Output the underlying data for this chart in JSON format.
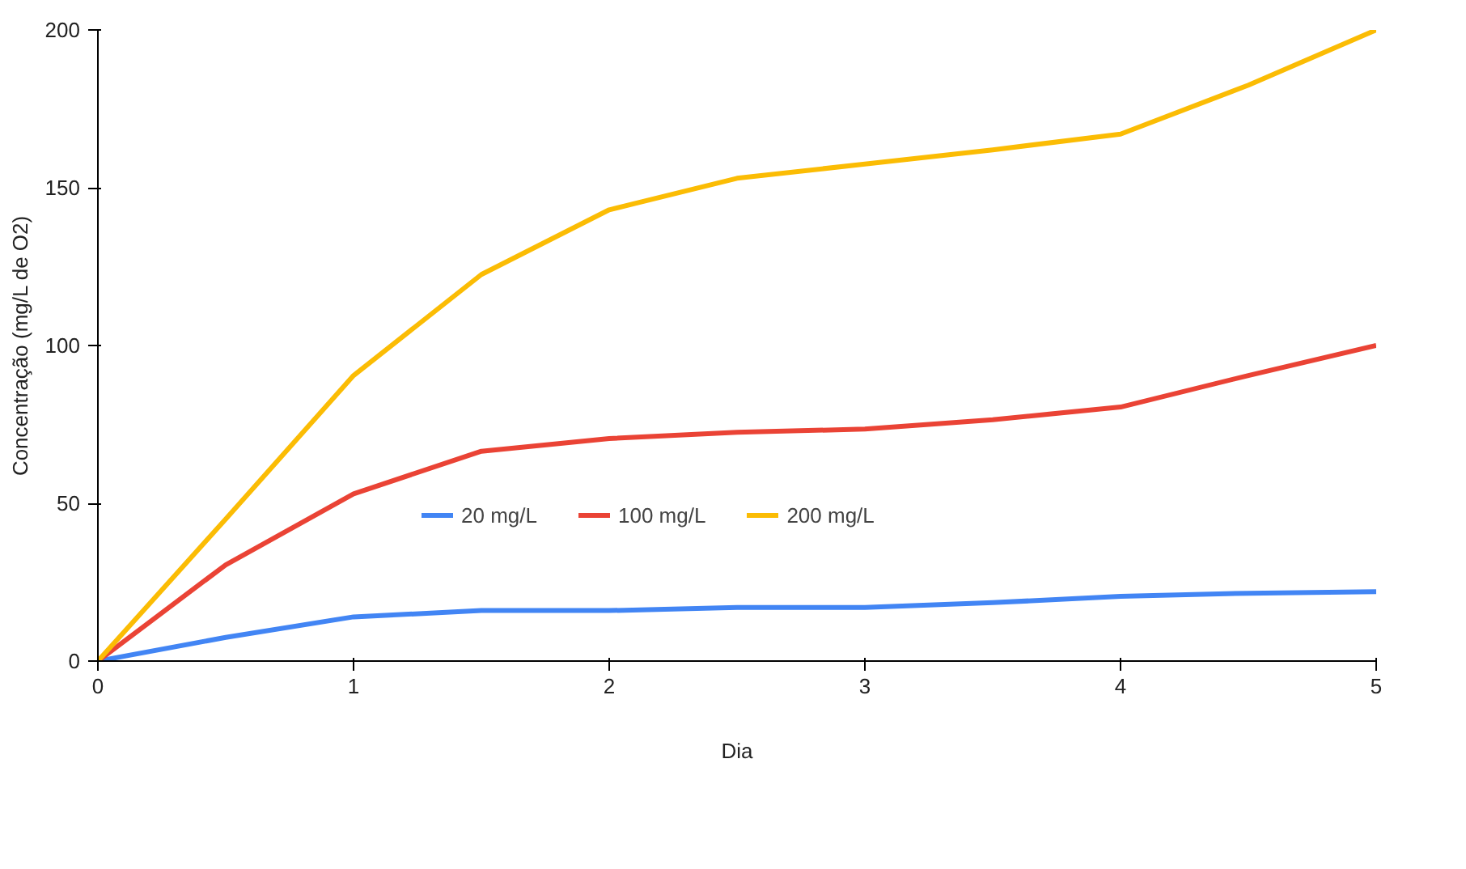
{
  "chart_data": {
    "type": "line",
    "xlabel": "Dia",
    "ylabel": "Concentração (mg/L de O2)",
    "x": [
      0,
      0.5,
      1,
      1.5,
      2,
      2.5,
      3,
      3.5,
      4,
      4.5,
      5
    ],
    "series": [
      {
        "name": "20 mg/L",
        "color": "#4285f4",
        "values": [
          0,
          7.5,
          14,
          16,
          16,
          17,
          17,
          18.5,
          20.5,
          21.5,
          22
        ]
      },
      {
        "name": "100 mg/L",
        "color": "#ea4335",
        "values": [
          0,
          30.5,
          53,
          66.5,
          70.5,
          72.5,
          73.5,
          76.5,
          80.5,
          90.5,
          100
        ]
      },
      {
        "name": "200 mg/L",
        "color": "#fbbc04",
        "values": [
          0,
          45,
          90.5,
          122.5,
          143,
          153,
          157.5,
          162,
          167,
          182.5,
          200
        ]
      }
    ],
    "xlim": [
      0,
      5
    ],
    "xticks": [
      0,
      1,
      2,
      3,
      4,
      5
    ],
    "ylim": [
      0,
      200
    ],
    "yticks": [
      0,
      50,
      100,
      150,
      200
    ],
    "grid": false,
    "legend": "bottom",
    "marker": "none",
    "line_style": "solid"
  }
}
